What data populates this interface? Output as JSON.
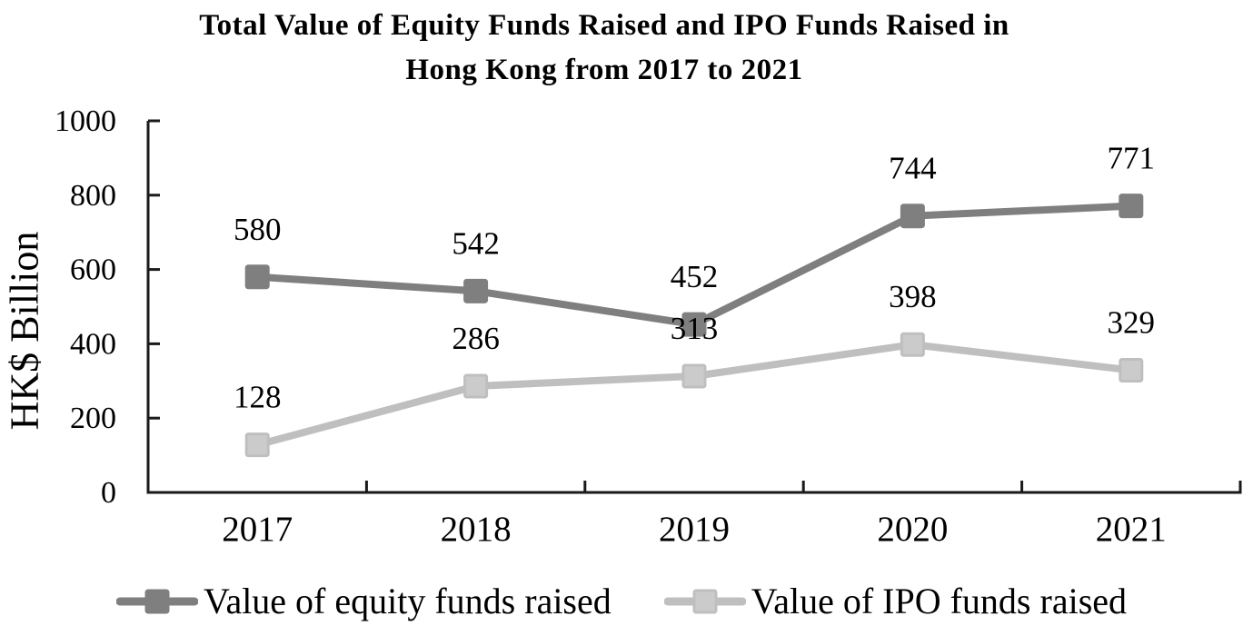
{
  "title": {
    "line1": "Total Value of Equity Funds Raised and IPO Funds Raised in",
    "line2": "Hong Kong from 2017 to 2021"
  },
  "colors": {
    "axis": "#1a1a1a",
    "text": "#000000",
    "equity_series": "#7f7f7f",
    "ipo_series": "#bfbfbf",
    "ipo_marker_fill": "#cbcbcb"
  },
  "chart_data": {
    "type": "line",
    "title": "Total Value of Equity Funds Raised and IPO Funds Raised in Hong Kong from 2017 to 2021",
    "categories": [
      "2017",
      "2018",
      "2019",
      "2020",
      "2021"
    ],
    "series": [
      {
        "name": "Value of equity funds raised",
        "values": [
          580,
          542,
          452,
          744,
          771
        ],
        "color": "#7f7f7f",
        "marker_fill": "#7f7f7f",
        "marker": "square"
      },
      {
        "name": "Value of IPO funds raised",
        "values": [
          128,
          286,
          313,
          398,
          329
        ],
        "color": "#bfbfbf",
        "marker_fill": "#cbcbcb",
        "marker": "square"
      }
    ],
    "xlabel": "",
    "ylabel": "HK$ Billion",
    "ylim": [
      0,
      1000
    ],
    "yticks": [
      0,
      200,
      400,
      600,
      800,
      1000
    ],
    "data_labels": true,
    "grid": false,
    "legend_position": "bottom"
  }
}
